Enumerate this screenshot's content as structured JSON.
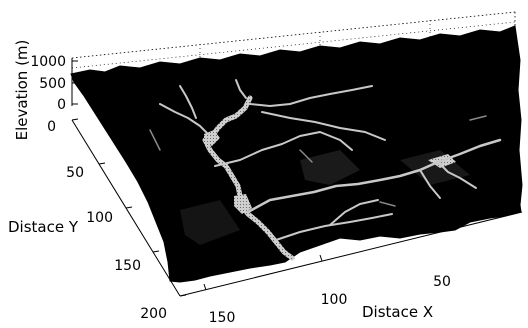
{
  "chart_data": {
    "type": "surface",
    "title": "",
    "xlabel": "Distace X",
    "ylabel": "Distace Y",
    "zlabel": "Elevation (m)",
    "x_ticks": [
      "50",
      "100",
      "150"
    ],
    "y_ticks": [
      "0",
      "50",
      "100",
      "150",
      "200"
    ],
    "z_ticks": [
      "0",
      "500",
      "1000"
    ],
    "xlim": [
      0,
      175
    ],
    "ylim": [
      0,
      200
    ],
    "zlim": [
      0,
      1000
    ],
    "grid": true,
    "colors": {
      "surface": "#000000",
      "channels": "#c8c8c8",
      "grid": "#000000"
    }
  }
}
